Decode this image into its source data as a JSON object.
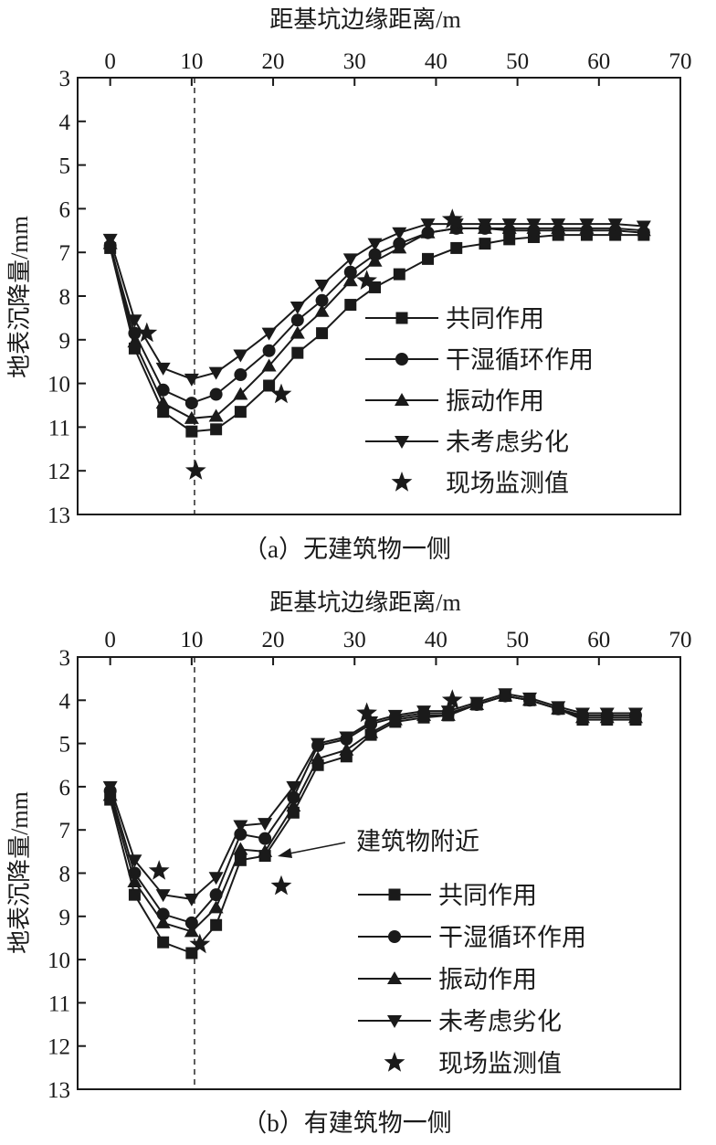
{
  "chart_data": [
    {
      "type": "line",
      "panel": "a",
      "title": "距基坑边缘距离/m",
      "xlabel": "距基坑边缘距离/m",
      "ylabel": "地表沉降量/mm",
      "caption": "（a）无建筑物一侧",
      "x_axis_position": "top",
      "y_inverted": true,
      "xlim": [
        -4,
        70
      ],
      "ylim": [
        3,
        13
      ],
      "x_ticks": [
        0,
        10,
        20,
        30,
        40,
        50,
        60,
        70
      ],
      "y_ticks": [
        3,
        4,
        5,
        6,
        7,
        8,
        9,
        10,
        11,
        12,
        13
      ],
      "reference_x": 10,
      "legend_position": "bottom-right",
      "series": [
        {
          "name": "共同作用",
          "marker": "square",
          "x": [
            0,
            3,
            6.5,
            10,
            13,
            16,
            19.5,
            23,
            26,
            29.5,
            32.5,
            35.5,
            39,
            42.5,
            46,
            49,
            52,
            55,
            58.5,
            62,
            65.5
          ],
          "y": [
            6.9,
            9.2,
            10.65,
            11.1,
            11.05,
            10.65,
            10.05,
            9.3,
            8.85,
            8.2,
            7.8,
            7.5,
            7.15,
            6.9,
            6.8,
            6.7,
            6.65,
            6.6,
            6.6,
            6.6,
            6.6
          ]
        },
        {
          "name": "干湿循环作用",
          "marker": "circle",
          "x": [
            0,
            3,
            6.5,
            10,
            13,
            16,
            19.5,
            23,
            26,
            29.5,
            32.5,
            35.5,
            39,
            42.5,
            46,
            49,
            52,
            55,
            58.5,
            62,
            65.5
          ],
          "y": [
            6.85,
            8.85,
            10.15,
            10.45,
            10.25,
            9.8,
            9.25,
            8.55,
            8.1,
            7.45,
            7.05,
            6.8,
            6.55,
            6.45,
            6.45,
            6.5,
            6.5,
            6.5,
            6.5,
            6.5,
            6.55
          ]
        },
        {
          "name": "振动作用",
          "marker": "triangle-up",
          "x": [
            0,
            3,
            6.5,
            10,
            13,
            16,
            19.5,
            23,
            26,
            29.5,
            32.5,
            35.5,
            39,
            42.5,
            46,
            49,
            52,
            55,
            58.5,
            62,
            65.5
          ],
          "y": [
            6.8,
            9.05,
            10.45,
            10.8,
            10.75,
            10.25,
            9.6,
            8.85,
            8.35,
            7.65,
            7.2,
            6.9,
            6.55,
            6.45,
            6.45,
            6.45,
            6.45,
            6.45,
            6.45,
            6.45,
            6.5
          ]
        },
        {
          "name": "未考虑劣化",
          "marker": "triangle-down",
          "x": [
            0,
            3,
            6.5,
            10,
            13,
            16,
            19.5,
            23,
            26,
            29.5,
            32.5,
            35.5,
            39,
            42.5,
            46,
            49,
            52,
            55,
            58.5,
            62,
            65.5
          ],
          "y": [
            6.7,
            8.55,
            9.65,
            9.9,
            9.75,
            9.35,
            8.85,
            8.25,
            7.75,
            7.15,
            6.8,
            6.55,
            6.35,
            6.35,
            6.35,
            6.35,
            6.35,
            6.35,
            6.35,
            6.35,
            6.4
          ]
        },
        {
          "name": "现场监测值",
          "marker": "star",
          "line": false,
          "x": [
            4.5,
            10.5,
            21,
            31.5,
            42
          ],
          "y": [
            8.85,
            12.0,
            10.25,
            7.65,
            6.25
          ]
        }
      ]
    },
    {
      "type": "line",
      "panel": "b",
      "title": "距基坑边缘距离/m",
      "xlabel": "距基坑边缘距离/m",
      "ylabel": "地表沉降量/mm",
      "caption": "（b）有建筑物一侧",
      "x_axis_position": "top",
      "y_inverted": true,
      "xlim": [
        -4,
        70
      ],
      "ylim": [
        3,
        13
      ],
      "x_ticks": [
        0,
        10,
        20,
        30,
        40,
        50,
        60,
        70
      ],
      "y_ticks": [
        3,
        4,
        5,
        6,
        7,
        8,
        9,
        10,
        11,
        12,
        13
      ],
      "reference_x": 10,
      "legend_position": "bottom-right",
      "annotation": {
        "text": "建筑物附近",
        "x": 20,
        "y": 7.7
      },
      "series": [
        {
          "name": "共同作用",
          "marker": "square",
          "x": [
            0,
            3,
            6.5,
            10,
            13,
            16,
            19,
            22.5,
            25.5,
            29,
            32,
            35,
            38.5,
            41.5,
            45,
            48.5,
            51.5,
            55,
            58,
            61,
            64.5
          ],
          "y": [
            6.3,
            8.5,
            9.6,
            9.85,
            9.2,
            7.7,
            7.6,
            6.6,
            5.5,
            5.3,
            4.8,
            4.5,
            4.4,
            4.35,
            4.1,
            3.9,
            4.0,
            4.2,
            4.45,
            4.45,
            4.45
          ]
        },
        {
          "name": "干湿循环作用",
          "marker": "circle",
          "x": [
            0,
            3,
            6.5,
            10,
            13,
            16,
            19,
            22.5,
            25.5,
            29,
            32,
            35,
            38.5,
            41.5,
            45,
            48.5,
            51.5,
            55,
            58,
            61,
            64.5
          ],
          "y": [
            6.1,
            8.0,
            8.95,
            9.15,
            8.5,
            7.1,
            7.2,
            6.25,
            5.05,
            4.9,
            4.55,
            4.4,
            4.3,
            4.3,
            4.1,
            3.9,
            4.0,
            4.2,
            4.35,
            4.35,
            4.35
          ]
        },
        {
          "name": "振动作用",
          "marker": "triangle-up",
          "x": [
            0,
            3,
            6.5,
            10,
            13,
            16,
            19,
            22.5,
            25.5,
            29,
            32,
            35,
            38.5,
            41.5,
            45,
            48.5,
            51.5,
            55,
            58,
            61,
            64.5
          ],
          "y": [
            6.2,
            8.2,
            9.15,
            9.35,
            8.8,
            7.45,
            7.5,
            6.45,
            5.35,
            5.15,
            4.75,
            4.45,
            4.35,
            4.35,
            4.1,
            3.9,
            4.0,
            4.2,
            4.4,
            4.4,
            4.4
          ]
        },
        {
          "name": "未考虑劣化",
          "marker": "triangle-down",
          "x": [
            0,
            3,
            6.5,
            10,
            13,
            16,
            19,
            22.5,
            25.5,
            29,
            32,
            35,
            38.5,
            41.5,
            45,
            48.5,
            51.5,
            55,
            58,
            61,
            64.5
          ],
          "y": [
            6.0,
            7.7,
            8.5,
            8.6,
            8.1,
            6.9,
            6.85,
            6.0,
            5.0,
            4.85,
            4.5,
            4.35,
            4.25,
            4.25,
            4.05,
            3.85,
            3.95,
            4.15,
            4.3,
            4.3,
            4.3
          ]
        },
        {
          "name": "现场监测值",
          "marker": "star",
          "line": false,
          "x": [
            6,
            11,
            21,
            31.5,
            42
          ],
          "y": [
            7.95,
            9.65,
            8.3,
            4.3,
            4.0
          ]
        }
      ]
    }
  ]
}
